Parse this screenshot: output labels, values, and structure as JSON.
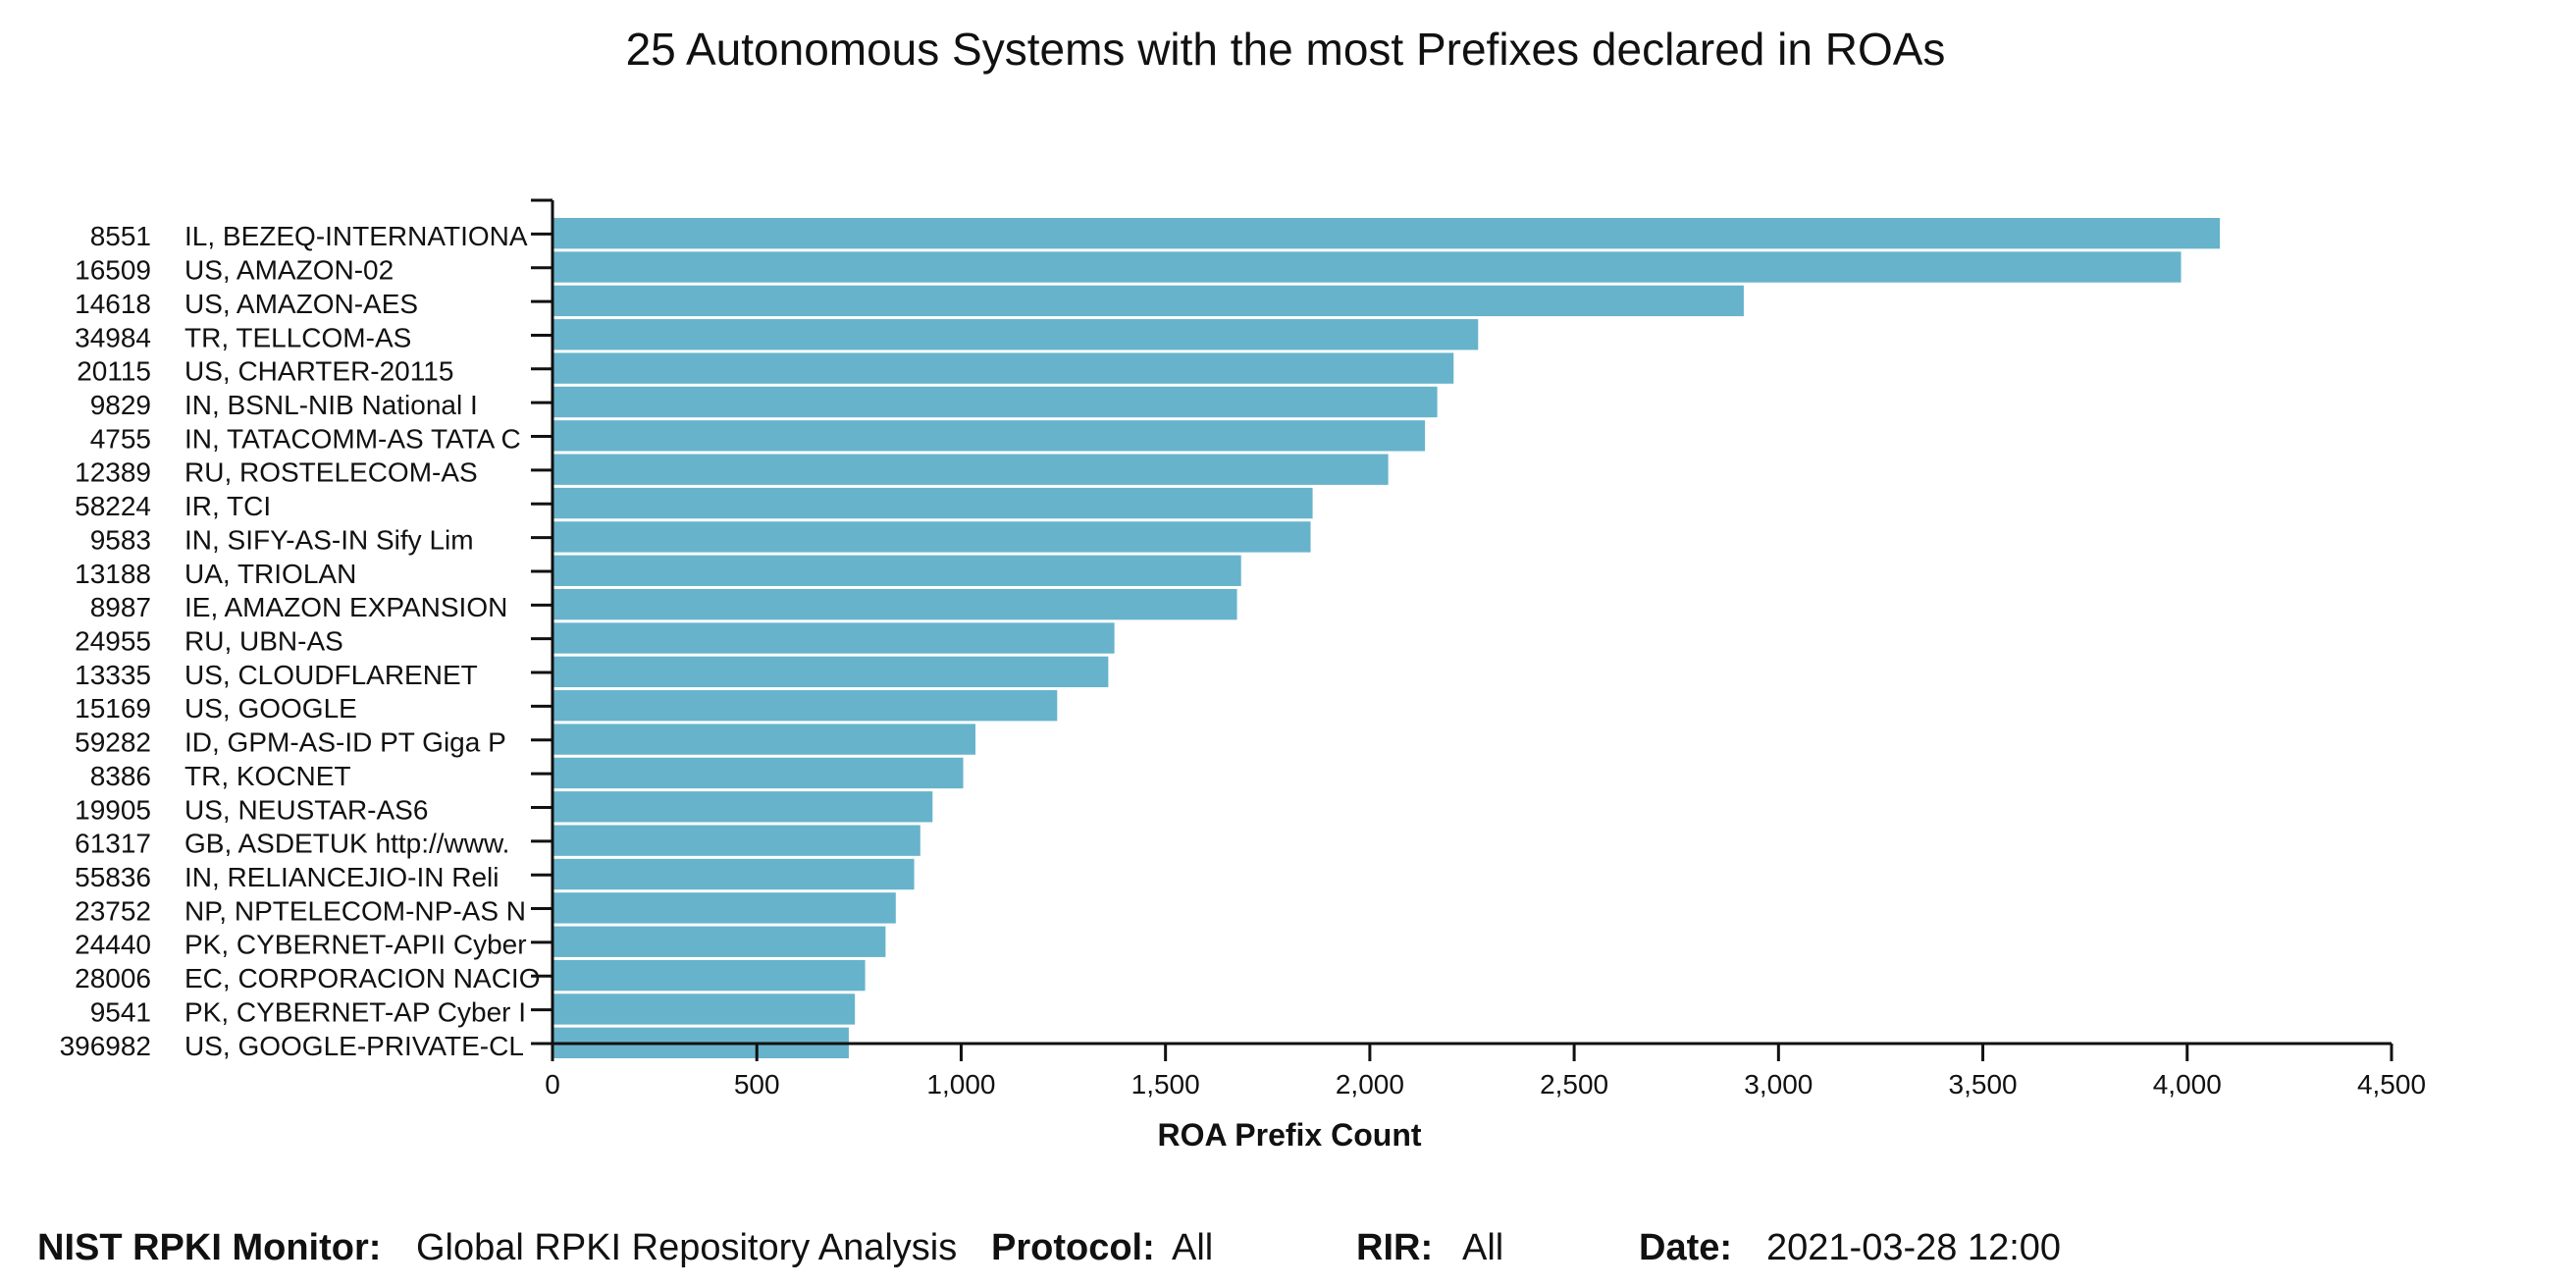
{
  "chart_data": {
    "type": "bar",
    "orientation": "horizontal",
    "title": "25 Autonomous Systems with the most Prefixes declared in ROAs",
    "xlabel": "ROA Prefix Count",
    "ylabel": "",
    "xlim": [
      0,
      4500
    ],
    "x_ticks": [
      "0",
      "500",
      "1,000",
      "1,500",
      "2,000",
      "2,500",
      "3,000",
      "3,500",
      "4,000",
      "4,500"
    ],
    "bar_color": "#67b3cb",
    "grid": false,
    "categories": [
      {
        "asn": "8551",
        "name": "IL, BEZEQ-INTERNATIONA"
      },
      {
        "asn": "16509",
        "name": "US, AMAZON-02"
      },
      {
        "asn": "14618",
        "name": "US, AMAZON-AES"
      },
      {
        "asn": "34984",
        "name": "TR, TELLCOM-AS"
      },
      {
        "asn": "20115",
        "name": "US, CHARTER-20115"
      },
      {
        "asn": "9829",
        "name": "IN, BSNL-NIB National I"
      },
      {
        "asn": "4755",
        "name": "IN, TATACOMM-AS TATA C"
      },
      {
        "asn": "12389",
        "name": "RU, ROSTELECOM-AS"
      },
      {
        "asn": "58224",
        "name": "IR, TCI"
      },
      {
        "asn": "9583",
        "name": "IN, SIFY-AS-IN Sify Lim"
      },
      {
        "asn": "13188",
        "name": "UA, TRIOLAN"
      },
      {
        "asn": "8987",
        "name": "IE, AMAZON EXPANSION"
      },
      {
        "asn": "24955",
        "name": "RU, UBN-AS"
      },
      {
        "asn": "13335",
        "name": "US, CLOUDFLARENET"
      },
      {
        "asn": "15169",
        "name": "US, GOOGLE"
      },
      {
        "asn": "59282",
        "name": "ID, GPM-AS-ID PT Giga P"
      },
      {
        "asn": "8386",
        "name": "TR, KOCNET"
      },
      {
        "asn": "19905",
        "name": "US, NEUSTAR-AS6"
      },
      {
        "asn": "61317",
        "name": "GB, ASDETUK http://www."
      },
      {
        "asn": "55836",
        "name": "IN, RELIANCEJIO-IN Reli"
      },
      {
        "asn": "23752",
        "name": "NP, NPTELECOM-NP-AS N"
      },
      {
        "asn": "24440",
        "name": "PK, CYBERNET-APII Cyber"
      },
      {
        "asn": "28006",
        "name": "EC, CORPORACION NACIO"
      },
      {
        "asn": "9541",
        "name": "PK, CYBERNET-AP Cyber I"
      },
      {
        "asn": "396982",
        "name": "US, GOOGLE-PRIVATE-CL"
      }
    ],
    "values": [
      4080,
      3985,
      2915,
      2265,
      2205,
      2165,
      2135,
      2045,
      1860,
      1855,
      1685,
      1675,
      1375,
      1360,
      1235,
      1035,
      1005,
      930,
      900,
      885,
      840,
      815,
      765,
      740,
      725
    ]
  },
  "footer": {
    "monitor_label": "NIST RPKI Monitor:",
    "monitor_value": "Global RPKI Repository Analysis",
    "protocol_label": "Protocol:",
    "protocol_value": "All",
    "rir_label": "RIR:",
    "rir_value": "All",
    "date_label": "Date:",
    "date_value": "2021-03-28 12:00"
  }
}
